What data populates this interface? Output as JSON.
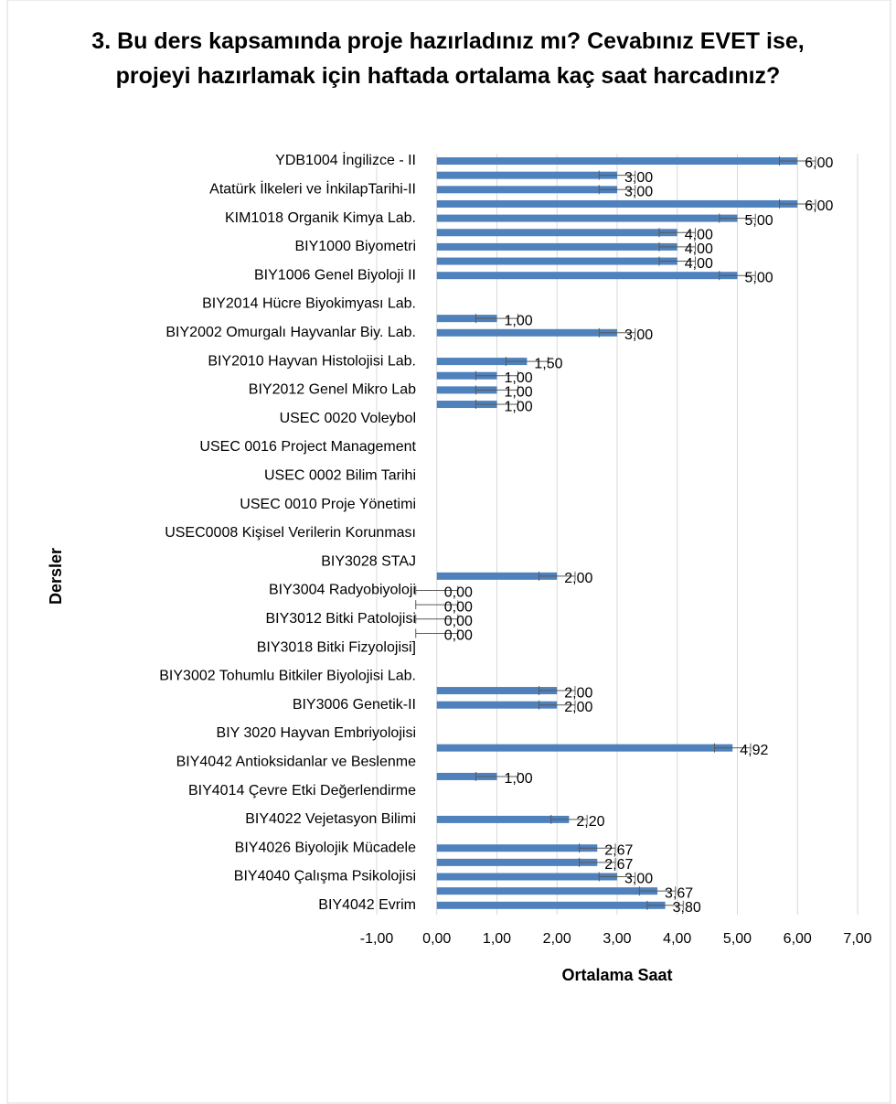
{
  "chart_data": {
    "type": "hbar",
    "title": "3. Bu ders kapsamında proje hazırladınız mı? Cevabınız EVET ise, projeyi hazırlamak için haftada ortalama kaç saat harcadınız?",
    "xlabel": "Ortalama Saat",
    "ylabel": "Dersler",
    "color": "#4f81bd",
    "grid": true,
    "xlim": [
      -1,
      7
    ],
    "xticks": [
      {
        "value": -1,
        "label": "-1,00"
      },
      {
        "value": 0,
        "label": "0,00"
      },
      {
        "value": 1,
        "label": "1,00"
      },
      {
        "value": 2,
        "label": "2,00"
      },
      {
        "value": 3,
        "label": "3,00"
      },
      {
        "value": 4,
        "label": "4,00"
      },
      {
        "value": 5,
        "label": "5,00"
      },
      {
        "value": 6,
        "label": "6,00"
      },
      {
        "value": 7,
        "label": "7,00"
      }
    ],
    "categories": [
      "YDB1004 İngilizce - II",
      null,
      "Atatürk İlkeleri ve İnkilapTarihi-II",
      null,
      "KIM1018 Organik Kimya Lab.",
      null,
      "BIY1000 Biyometri",
      null,
      "BIY1006 Genel Biyoloji II",
      null,
      "BIY2014 Hücre Biyokimyası Lab.",
      null,
      "BIY2002 Omurgalı Hayvanlar Biy. Lab.",
      null,
      "BIY2010 Hayvan Histolojisi Lab.",
      null,
      "BIY2012 Genel Mikro Lab",
      null,
      "USEC 0020 Voleybol",
      null,
      "USEC 0016 Project Management",
      null,
      "USEC 0002 Bilim Tarihi",
      null,
      "USEC 0010 Proje Yönetimi",
      null,
      "USEC0008 Kişisel Verilerin Korunması",
      null,
      "BIY3028 STAJ",
      null,
      "BIY3004 Radyobiyoloji",
      null,
      "BIY3012 Bitki Patolojisi",
      null,
      "BIY3018 Bitki Fizyolojisi]",
      null,
      "BIY3002 Tohumlu Bitkiler Biyolojisi Lab.",
      null,
      "BIY3006 Genetik-II",
      null,
      "BIY 3020 Hayvan Embriyolojisi",
      null,
      "BIY4042 Antioksidanlar ve Beslenme",
      null,
      "BIY4014 Çevre Etki Değerlendirme",
      null,
      "BIY4022 Vejetasyon Bilimi",
      null,
      "BIY4026 Biyolojik Mücadele",
      null,
      "BIY4040 Çalışma Psikolojisi",
      null,
      "BIY4042 Evrim"
    ],
    "values": [
      6,
      3,
      3,
      6,
      5,
      4,
      4,
      4,
      5,
      null,
      null,
      1,
      3,
      null,
      1.5,
      1,
      1,
      1,
      null,
      null,
      null,
      null,
      null,
      null,
      null,
      null,
      null,
      null,
      null,
      2,
      0,
      0,
      0,
      0,
      null,
      null,
      null,
      2,
      2,
      null,
      null,
      4.92,
      null,
      1,
      null,
      null,
      2.2,
      null,
      2.67,
      2.67,
      3,
      3.67,
      3.8
    ],
    "value_labels": [
      "6,00",
      "3,00",
      "3,00",
      "6,00",
      "5,00",
      "4,00",
      "4,00",
      "4,00",
      "5,00",
      null,
      null,
      "1,00",
      "3,00",
      null,
      "1,50",
      "1,00",
      "1,00",
      "1,00",
      null,
      null,
      null,
      null,
      null,
      null,
      null,
      null,
      null,
      null,
      null,
      "2,00",
      "0,00",
      "0,00",
      "0,00",
      "0,00",
      null,
      null,
      null,
      "2,00",
      "2,00",
      null,
      null,
      "4,92",
      null,
      "1,00",
      null,
      null,
      "2,20",
      null,
      "2,67",
      "2,67",
      "3,00",
      "3,67",
      "3,80"
    ],
    "errors": [
      0.3,
      0.3,
      0.3,
      0.3,
      0.3,
      0.3,
      0.3,
      0.3,
      0.3,
      null,
      null,
      0.35,
      0.3,
      null,
      0.35,
      0.35,
      0.35,
      0.35,
      null,
      null,
      null,
      null,
      null,
      null,
      null,
      null,
      null,
      null,
      null,
      0.3,
      0.35,
      0.35,
      0.35,
      0.35,
      null,
      null,
      null,
      0.3,
      0.3,
      null,
      null,
      0.3,
      null,
      0.35,
      null,
      null,
      0.3,
      null,
      0.3,
      0.3,
      0.3,
      0.3,
      0.3
    ]
  }
}
